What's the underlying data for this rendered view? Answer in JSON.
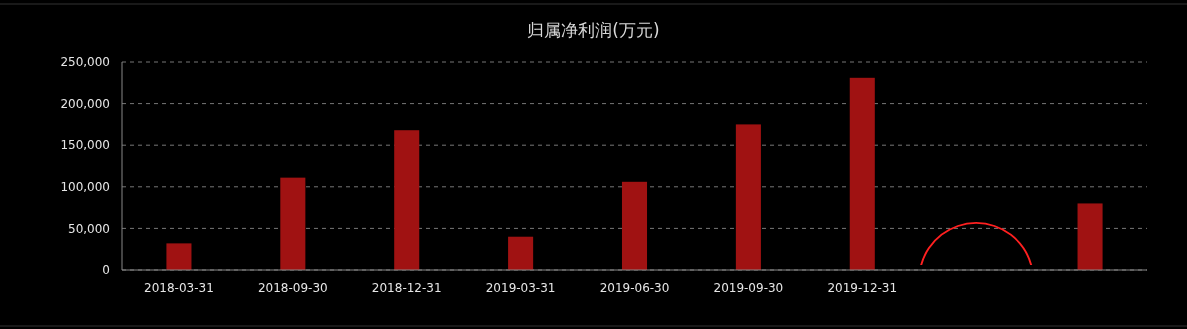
{
  "chart_data": {
    "type": "bar",
    "title": "归属净利润(万元)",
    "categories": [
      "2018-03-31",
      "2018-09-30",
      "2018-12-31",
      "2019-03-31",
      "2019-06-30",
      "2019-09-30",
      "2019-12-31",
      null,
      null
    ],
    "values": [
      32000,
      111000,
      168000,
      40000,
      106000,
      175000,
      231000,
      null,
      80000
    ],
    "color": "#a01212",
    "ylim": [
      0,
      250000
    ],
    "yticks": [
      0,
      {
        "value": 50000,
        "label": "50,000"
      },
      {
        "value": 100000,
        "label": "100,000"
      },
      {
        "value": 150000,
        "label": "150,000"
      },
      {
        "value": 200000,
        "label": "200,000"
      },
      {
        "value": 250000,
        "label": "250,000"
      }
    ],
    "grid": "y"
  }
}
